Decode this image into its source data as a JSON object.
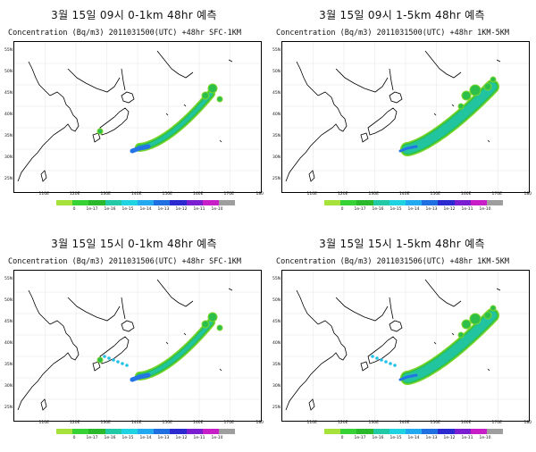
{
  "panels": [
    {
      "title": "3월 15일 09시 0-1km 48hr 예측",
      "subtitle": "Concentration (Bq/m3) 2011031500(UTC) +48hr SFC-1KM"
    },
    {
      "title": "3월 15일 09시 1-5km 48hr 예측",
      "subtitle": "Concentration (Bq/m3) 2011031500(UTC) +48hr 1KM-5KM"
    },
    {
      "title": "3월 15일 15시 0-1km 48hr 예측",
      "subtitle": "Concentration (Bq/m3) 2011031506(UTC) +48hr SFC-1KM"
    },
    {
      "title": "3월 15일 15시 1-5km 48hr 예측",
      "subtitle": "Concentration (Bq/m3) 2011031506(UTC) +48hr 1KM-5KM"
    }
  ],
  "lat_labels": [
    "55N",
    "50N",
    "45N",
    "40N",
    "35N",
    "30N",
    "25N"
  ],
  "lon_labels": [
    "110E",
    "120E",
    "130E",
    "140E",
    "150E",
    "160E",
    "170E",
    "180"
  ],
  "colorbar": {
    "colors": [
      "#a6e23a",
      "#36d236",
      "#2ab92a",
      "#21c9a6",
      "#1fd3e0",
      "#23a9ef",
      "#1f6fe0",
      "#2a2ad0",
      "#7a1fd0",
      "#c81ec8",
      "#9e9e9e"
    ],
    "labels": [
      "0",
      "1e-17",
      "1e-16",
      "1e-15",
      "1e-14",
      "1e-13",
      "1e-12",
      "1e-11",
      "1e-10"
    ]
  },
  "plume_colors": {
    "edge_green": "#7ad62a",
    "inner_green": "#2cc04a",
    "teal": "#22c4a0",
    "cyan": "#22c0e8",
    "blue": "#2474e6"
  }
}
